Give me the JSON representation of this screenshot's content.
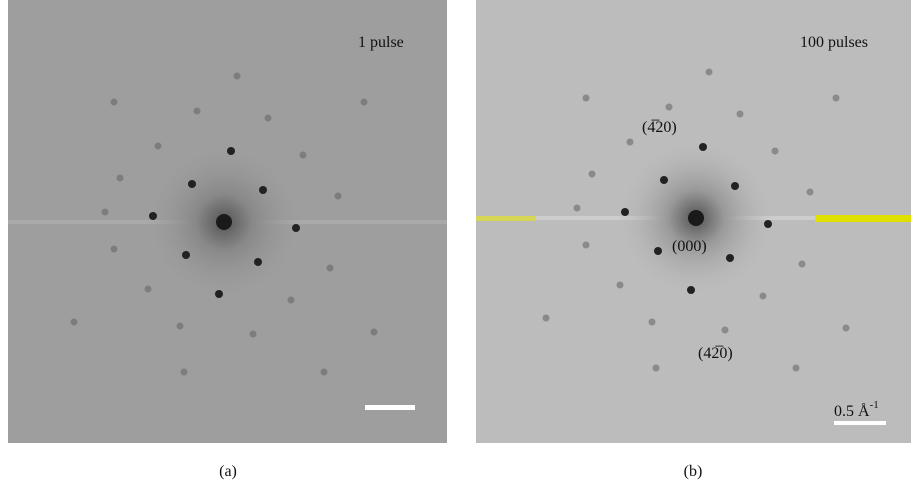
{
  "panels": [
    {
      "annotation": "1 pulse",
      "caption": "(a)"
    },
    {
      "annotation": "100 pulses",
      "caption": "(b)",
      "spot_labels": [
        "(4̅20)",
        "(000)",
        "(42̅0)"
      ],
      "scale_label": {
        "text": "0.5 Å",
        "superscript": "-1"
      }
    }
  ]
}
